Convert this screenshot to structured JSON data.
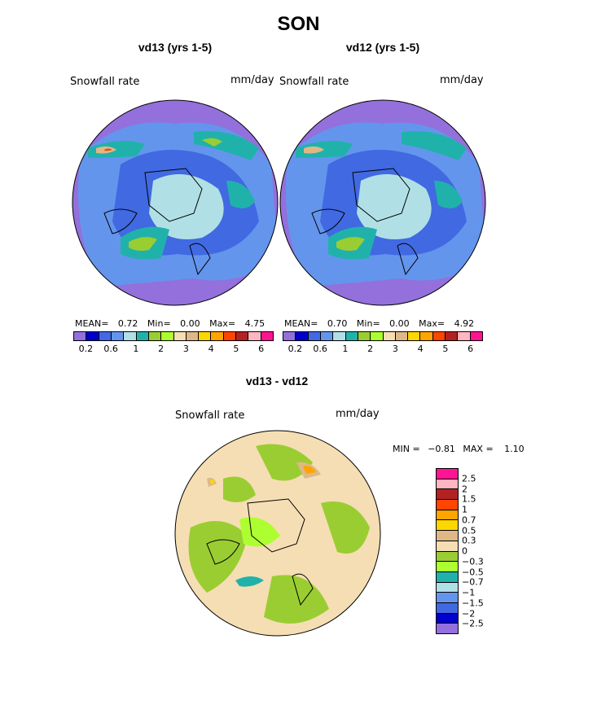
{
  "title": "SON",
  "panels": [
    {
      "title": "vd13 (yrs 1-5)",
      "variable": "Snowfall rate",
      "units": "mm/day",
      "stats": {
        "mean_label": "MEAN=",
        "mean": "0.72",
        "min_label": "Min=",
        "min": "0.00",
        "max_label": "Max=",
        "max": "4.75"
      }
    },
    {
      "title": "vd12 (yrs 1-5)",
      "variable": "Snowfall rate",
      "units": "mm/day",
      "stats": {
        "mean_label": "MEAN=",
        "mean": "0.70",
        "min_label": "Min=",
        "min": "0.00",
        "max_label": "Max=",
        "max": "4.92"
      }
    }
  ],
  "colorbar": {
    "colors": [
      "#9370db",
      "#0000cd",
      "#4169e1",
      "#6495ed",
      "#b0e0e6",
      "#20b2aa",
      "#9acd32",
      "#adff2f",
      "#f5deb3",
      "#deb887",
      "#ffd700",
      "#ffa500",
      "#ff4500",
      "#b22222",
      "#ffb6c1",
      "#ff1493"
    ],
    "labels": [
      "0.2",
      "0.6",
      "1",
      "2",
      "3",
      "4",
      "5",
      "6"
    ]
  },
  "diff": {
    "title": "vd13 - vd12",
    "variable": "Snowfall rate",
    "units": "mm/day",
    "stats": {
      "min_label": "MIN =",
      "min": "−0.81",
      "max_label": "MAX =",
      "max": "1.10"
    },
    "colorbar": {
      "colors": [
        "#ff1493",
        "#ffb6c1",
        "#b22222",
        "#ff4500",
        "#ffa500",
        "#ffd700",
        "#deb887",
        "#f5deb3",
        "#9acd32",
        "#adff2f",
        "#20b2aa",
        "#b0e0e6",
        "#6495ed",
        "#4169e1",
        "#0000cd",
        "#9370db"
      ],
      "labels": [
        "2.5",
        "2",
        "1.5",
        "1",
        "0.7",
        "0.5",
        "0.3",
        "0",
        "−0.3",
        "−0.5",
        "−0.7",
        "−1",
        "−1.5",
        "−2",
        "−2.5"
      ]
    }
  }
}
